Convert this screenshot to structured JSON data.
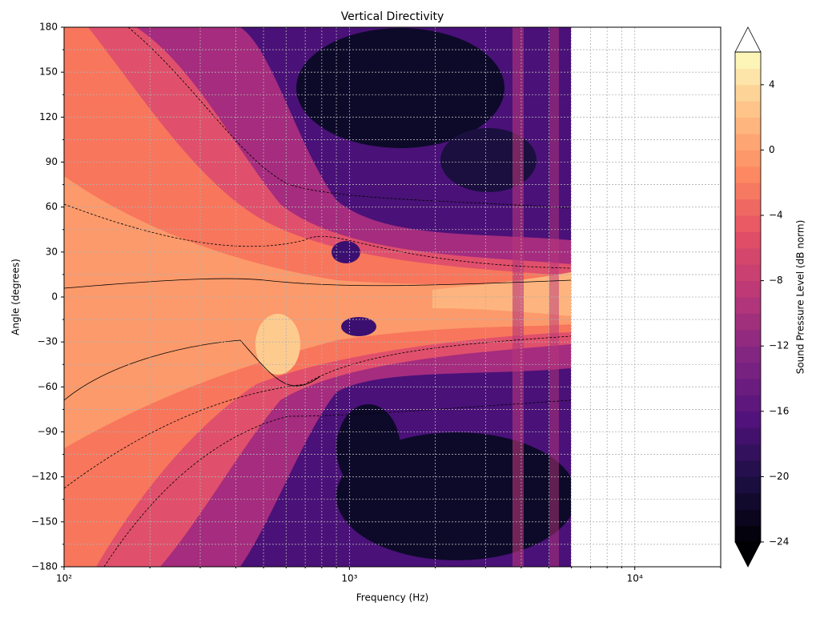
{
  "chart_data": {
    "type": "contour",
    "title": "Vertical Directivity",
    "x_label": "Frequency (Hz)",
    "y_label": "Angle (degrees)",
    "xscale": "log",
    "xlim": [
      100,
      20000
    ],
    "xticks": [
      {
        "value": 100,
        "label": "10²"
      },
      {
        "value": 1000,
        "label": "10³"
      },
      {
        "value": 10000,
        "label": "10⁴"
      }
    ],
    "ylim": [
      -180,
      180
    ],
    "yticks": [
      {
        "value": -180,
        "label": "−180"
      },
      {
        "value": -150,
        "label": "−150"
      },
      {
        "value": -120,
        "label": "−120"
      },
      {
        "value": -90,
        "label": "−90"
      },
      {
        "value": -60,
        "label": "−60"
      },
      {
        "value": -30,
        "label": "−30"
      },
      0,
      30,
      60,
      90,
      120,
      150,
      180
    ],
    "grid": true,
    "colorbar": {
      "label": "Sound Pressure Level (dB norm)",
      "lim": [
        -24,
        6
      ],
      "level_step": 1,
      "cmap": "magma",
      "extend": "both",
      "ticks": [
        {
          "value": -24,
          "label": "−24"
        },
        {
          "value": -20,
          "label": "−20"
        },
        {
          "value": -16,
          "label": "−16"
        },
        {
          "value": -12,
          "label": "−12"
        },
        {
          "value": -8,
          "label": "−8"
        },
        {
          "value": -4,
          "label": "−4"
        },
        0,
        4
      ]
    }
  }
}
